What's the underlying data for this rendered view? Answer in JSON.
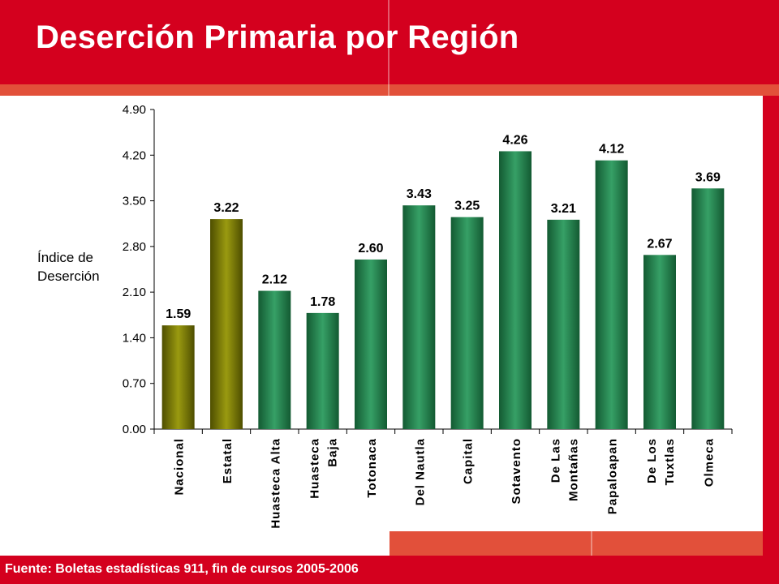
{
  "slide": {
    "title": "Deserción Primaria por Región",
    "source": "Fuente: Boletas estadísticas 911, fin de cursos 2005-2006"
  },
  "colors": {
    "header_red": "#d4001e",
    "accent_red": "#e2503a",
    "bar_olive": "#7a7a06",
    "bar_green": "#2a8a55"
  },
  "chart_data": {
    "type": "bar",
    "title": "",
    "xlabel": "",
    "ylabel": "Índice de Deserción",
    "ylabel_lines": [
      "Índice de",
      "Deserción"
    ],
    "ylim": [
      0,
      4.9
    ],
    "yticks": [
      "0.00",
      "0.70",
      "1.40",
      "2.10",
      "2.80",
      "3.50",
      "4.20",
      "4.90"
    ],
    "grid": false,
    "categories": [
      "Nacional",
      "Estatal",
      "Huasteca Alta",
      "Huasteca Baja",
      "Totonaca",
      "Del Nautla",
      "Capital",
      "Sotavento",
      "De Las Montañas",
      "Papaloapan",
      "De Los Tuxtlas",
      "Olmeca"
    ],
    "category_label_lines": [
      [
        "Nacional"
      ],
      [
        "Estatal"
      ],
      [
        "Huasteca Alta"
      ],
      [
        "Huasteca",
        "Baja"
      ],
      [
        "Totonaca"
      ],
      [
        "Del Nautla"
      ],
      [
        "Capital"
      ],
      [
        "Sotavento"
      ],
      [
        "De Las",
        "Montañas"
      ],
      [
        "Papaloapan"
      ],
      [
        "De Los",
        "Tuxtlas"
      ],
      [
        "Olmeca"
      ]
    ],
    "values": [
      1.59,
      3.22,
      2.12,
      1.78,
      2.6,
      3.43,
      3.25,
      4.26,
      3.21,
      4.12,
      2.67,
      3.69
    ],
    "value_labels": [
      "1.59",
      "3.22",
      "2.12",
      "1.78",
      "2.60",
      "3.43",
      "3.25",
      "4.26",
      "3.21",
      "4.12",
      "2.67",
      "3.69"
    ],
    "bar_color_groups": [
      "olive",
      "olive",
      "green",
      "green",
      "green",
      "green",
      "green",
      "green",
      "green",
      "green",
      "green",
      "green"
    ]
  }
}
